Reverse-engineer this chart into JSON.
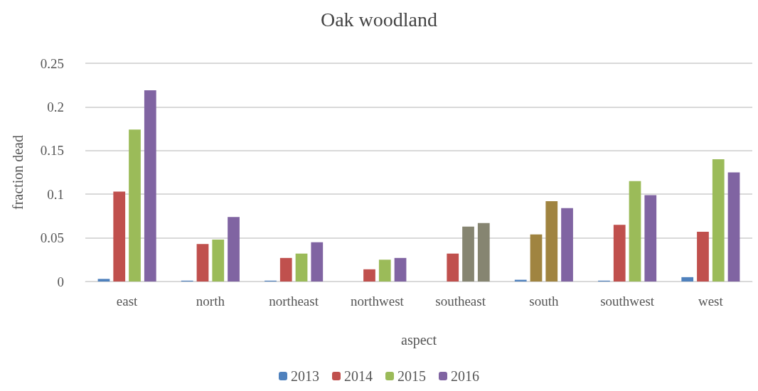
{
  "chart_data": {
    "type": "bar",
    "title": "Oak woodland",
    "xlabel": "aspect",
    "ylabel": "fraction dead",
    "categories": [
      "east",
      "north",
      "northeast",
      "northwest",
      "southeast",
      "south",
      "southwest",
      "west"
    ],
    "series": [
      {
        "name": "2013",
        "color": "#4f81bd",
        "values": [
          0.003,
          0.001,
          0.001,
          0,
          0,
          0.002,
          0.001,
          0.005
        ]
      },
      {
        "name": "2014",
        "color": "#c0504d",
        "colors": [
          "#c0504d",
          "#c0504d",
          "#c0504d",
          "#c0504d",
          "#c0504d",
          "#a08440",
          "#c0504d",
          "#c0504d"
        ],
        "values": [
          0.103,
          0.043,
          0.027,
          0.014,
          0.032,
          0.054,
          0.065,
          0.057
        ]
      },
      {
        "name": "2015",
        "color": "#9bbb59",
        "colors": [
          "#9bbb59",
          "#9bbb59",
          "#9bbb59",
          "#9bbb59",
          "#868571",
          "#a08440",
          "#9bbb59",
          "#9bbb59"
        ],
        "values": [
          0.174,
          0.048,
          0.032,
          0.025,
          0.063,
          0.092,
          0.115,
          0.14
        ]
      },
      {
        "name": "2016",
        "color": "#8064a2",
        "colors": [
          "#8064a2",
          "#8064a2",
          "#8064a2",
          "#8064a2",
          "#868571",
          "#8064a2",
          "#8064a2",
          "#8064a2"
        ],
        "values": [
          0.219,
          0.074,
          0.045,
          0.027,
          0.067,
          0.084,
          0.099,
          0.125
        ]
      }
    ],
    "ylim": [
      0,
      0.25
    ],
    "yticks": [
      0,
      0.05,
      0.1,
      0.15,
      0.2,
      0.25
    ],
    "grid": "y",
    "legend": "bottom"
  }
}
